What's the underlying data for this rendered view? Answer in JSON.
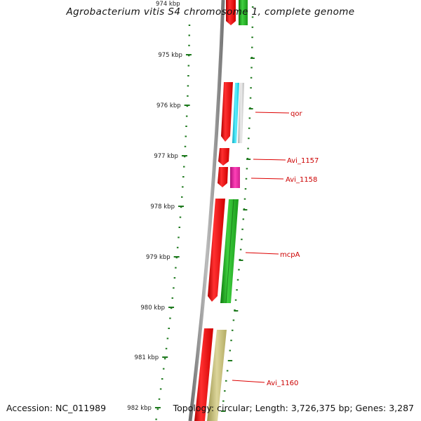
{
  "title": "Agrobacterium vitis S4 chromosome 1, complete genome",
  "accession_label": "Accession: NC_011989",
  "topology_label": "Topology: circular; Length: 3,726,375 bp; Genes: 3,287",
  "top_tick_label": "974 kbp",
  "tick_labels": [
    "975 kbp",
    "976 kbp",
    "977 kbp",
    "978 kbp",
    "979 kbp",
    "980 kbp",
    "981 kbp",
    "982 kbp"
  ],
  "gene_labels": [
    "qor",
    "Avi_1157",
    "Avi_1158",
    "mcpA",
    "Avi_1160"
  ],
  "colors": {
    "backbone": "#8a8a8a",
    "tick": "#1f7a1f",
    "label_line": "#dd0000",
    "cds_red": "#e00000",
    "cds_green": "#22aa22",
    "cyan": "#1ecfe6",
    "magenta": "#e0209a",
    "khaki": "#bdb56e",
    "gray": "#c8c8c8"
  }
}
